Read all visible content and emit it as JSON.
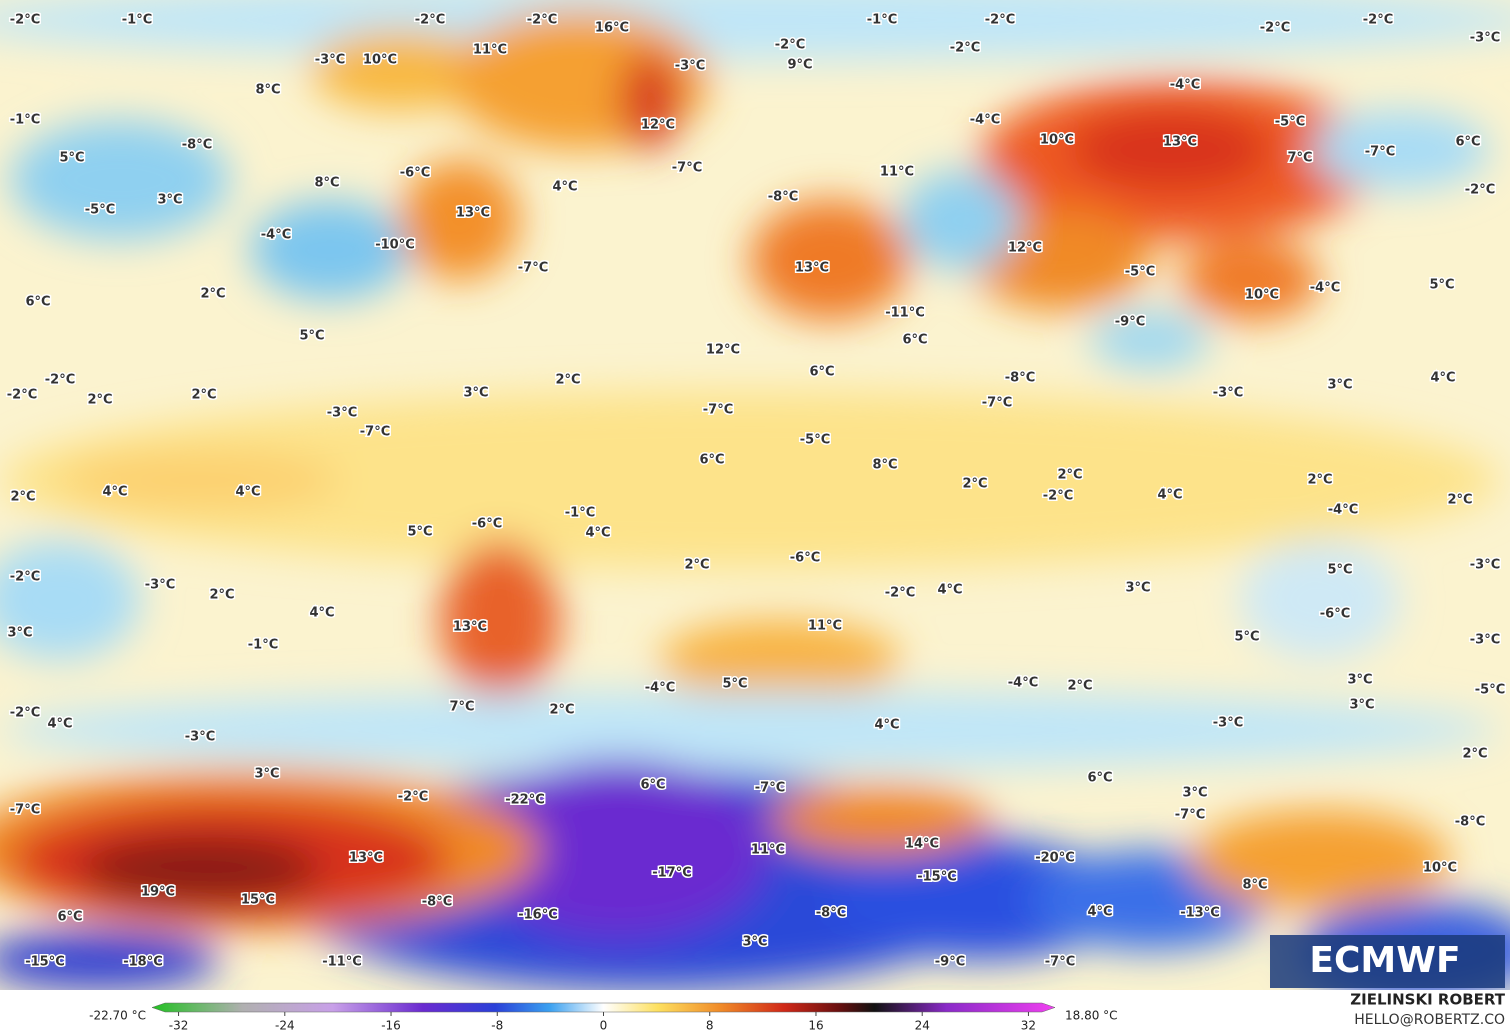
{
  "map": {
    "labels": [
      "-2°C",
      "-1°C",
      "-2°C",
      "-2°C",
      "16°C",
      "-1°C",
      "-2°C",
      "-2°C",
      "-2°C",
      "-3°C",
      "-3°C",
      "11°C",
      "10°C",
      "-3°C",
      "-2°C",
      "-2°C",
      "9°C",
      "8°C",
      "-4°C",
      "-1°C",
      "12°C",
      "-4°C",
      "-5°C",
      "-8°C",
      "10°C",
      "13°C",
      "6°C",
      "-7°C",
      "5°C",
      "7°C",
      "-6°C",
      "-7°C",
      "11°C",
      "8°C",
      "4°C",
      "-8°C",
      "-2°C",
      "3°C",
      "-5°C",
      "13°C",
      "-4°C",
      "-7°C",
      "-10°C",
      "13°C",
      "12°C",
      "-5°C",
      "6°C",
      "2°C",
      "5°C",
      "10°C",
      "-4°C",
      "-11°C",
      "-9°C",
      "5°C",
      "6°C",
      "12°C",
      "-2°C",
      "-2°C",
      "2°C",
      "2°C",
      "3°C",
      "2°C",
      "6°C",
      "-8°C",
      "3°C",
      "4°C",
      "-3°C",
      "-3°C",
      "-7°C",
      "-7°C",
      "-7°C",
      "-5°C",
      "6°C",
      "8°C",
      "2°C",
      "2°C",
      "-2°C",
      "2°C",
      "4°C",
      "2°C",
      "-4°C",
      "2°C",
      "4°C",
      "4°C",
      "-6°C",
      "-1°C",
      "5°C",
      "4°C",
      "2°C",
      "-6°C",
      "-3°C",
      "-2°C",
      "-3°C",
      "3°C",
      "5°C",
      "-2°C",
      "4°C",
      "2°C",
      "4°C",
      "-6°C",
      "13°C",
      "11°C",
      "3°C",
      "-1°C",
      "5°C",
      "-3°C",
      "-4°C",
      "5°C",
      "-4°C",
      "2°C",
      "3°C",
      "-5°C",
      "-2°C",
      "4°C",
      "7°C",
      "2°C",
      "-3°C",
      "4°C",
      "-3°C",
      "3°C",
      "2°C",
      "3°C",
      "6°C",
      "-7°C",
      "6°C",
      "3°C",
      "-7°C",
      "-2°C",
      "-22°C",
      "-7°C",
      "-8°C",
      "11°C",
      "14°C",
      "13°C",
      "-20°C",
      "10°C",
      "-17°C",
      "-15°C",
      "19°C",
      "15°C",
      "8°C",
      "-8°C",
      "-8°C",
      "4°C",
      "-13°C",
      "6°C",
      "-16°C",
      "3°C",
      "-15°C",
      "-18°C",
      "-11°C",
      "-9°C",
      "-7°C"
    ]
  },
  "colorbar": {
    "min_label": "-22.70 °C",
    "max_label": "18.80 °C",
    "lim": [
      -34,
      34
    ],
    "ticks": [
      -32,
      -24,
      -16,
      -8,
      0,
      8,
      16,
      24,
      32
    ]
  },
  "logo": "ECMWF",
  "credit": {
    "name": "ZIELINSKI ROBERT",
    "email": "HELLO@ROBERTZ.CO"
  }
}
